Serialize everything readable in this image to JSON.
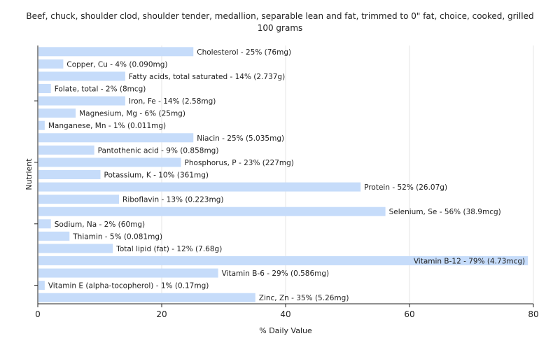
{
  "chart_data": {
    "type": "bar",
    "orientation": "horizontal",
    "title": "Beef, chuck, shoulder clod, shoulder tender, medallion, separable lean and fat, trimmed to 0\" fat, choice, cooked, grilled",
    "subtitle": "100 grams",
    "xlabel": "% Daily Value",
    "ylabel": "Nutrient",
    "xlim": [
      0,
      80
    ],
    "xticks": [
      0,
      20,
      40,
      60,
      80
    ],
    "grid": true,
    "bar_color": "#c6dcfa",
    "categories": [
      "Cholesterol",
      "Copper, Cu",
      "Fatty acids, total saturated",
      "Folate, total",
      "Iron, Fe",
      "Magnesium, Mg",
      "Manganese, Mn",
      "Niacin",
      "Pantothenic acid",
      "Phosphorus, P",
      "Potassium, K",
      "Protein",
      "Riboflavin",
      "Selenium, Se",
      "Sodium, Na",
      "Thiamin",
      "Total lipid (fat)",
      "Vitamin B-12",
      "Vitamin B-6",
      "Vitamin E (alpha-tocopherol)",
      "Zinc, Zn"
    ],
    "values": [
      25,
      4,
      14,
      2,
      14,
      6,
      1,
      25,
      9,
      23,
      10,
      52,
      13,
      56,
      2,
      5,
      12,
      79,
      29,
      1,
      35
    ],
    "labels": [
      "Cholesterol - 25% (76mg)",
      "Copper, Cu - 4% (0.090mg)",
      "Fatty acids, total saturated - 14% (2.737g)",
      "Folate, total - 2% (8mcg)",
      "Iron, Fe - 14% (2.58mg)",
      "Magnesium, Mg - 6% (25mg)",
      "Manganese, Mn - 1% (0.011mg)",
      "Niacin - 25% (5.035mg)",
      "Pantothenic acid - 9% (0.858mg)",
      "Phosphorus, P - 23% (227mg)",
      "Potassium, K - 10% (361mg)",
      "Protein - 52% (26.07g)",
      "Riboflavin - 13% (0.223mg)",
      "Selenium, Se - 56% (38.9mcg)",
      "Sodium, Na - 2% (60mg)",
      "Thiamin - 5% (0.081mg)",
      "Total lipid (fat) - 12% (7.68g)",
      "Vitamin B-12 - 79% (4.73mcg)",
      "Vitamin B-6 - 29% (0.586mg)",
      "Vitamin E (alpha-tocopherol) - 1% (0.17mg)",
      "Zinc, Zn - 35% (5.26mg)"
    ]
  }
}
